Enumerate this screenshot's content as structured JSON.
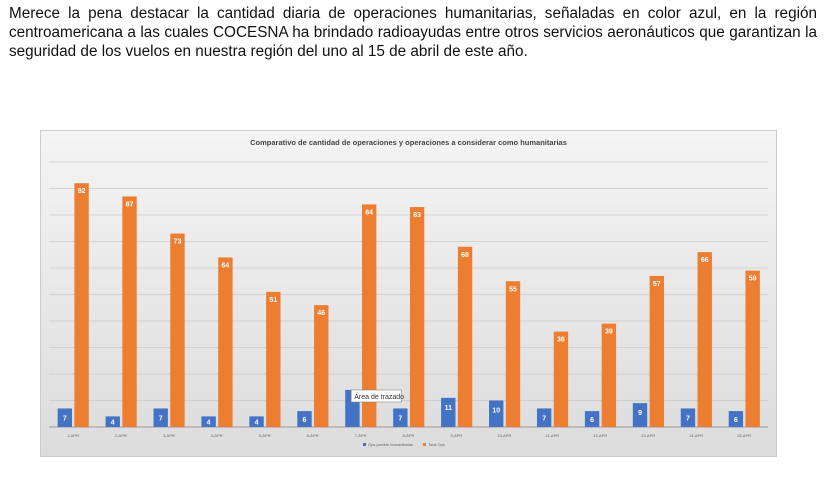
{
  "paragraph": "Merece la pena destacar la cantidad diaria de operaciones humanitarias, señaladas en color azul, en la región centroamericana a las cuales COCESNA ha brindado radioayudas entre otros servicios aeronáuticos que garantizan la seguridad de los vuelos en nuestra región del uno al 15 de abril de este año.",
  "tooltip": "Área de trazado",
  "chart_data": {
    "type": "bar",
    "title": "Comparativo de cantidad de operaciones y operaciones a considerar como humanitarias",
    "categories": [
      "1-APR",
      "2-APR",
      "3-APR",
      "4-APR",
      "5-APR",
      "6-APR",
      "7-APR",
      "8-APR",
      "9-APR",
      "10-APR",
      "11-APR",
      "12-APR",
      "13-APR",
      "14-APR",
      "15-APR"
    ],
    "series": [
      {
        "name": "Ops posible humanitarias",
        "color": "#4472c4",
        "values": [
          7,
          4,
          7,
          4,
          4,
          6,
          14,
          7,
          11,
          10,
          7,
          6,
          9,
          7,
          6
        ]
      },
      {
        "name": "Total Ops",
        "color": "#ed7d31",
        "values": [
          92,
          87,
          73,
          64,
          51,
          46,
          84,
          83,
          68,
          55,
          36,
          39,
          57,
          66,
          59
        ]
      }
    ],
    "ylim": [
      0,
      100
    ],
    "grid": true,
    "legend": "bottom"
  }
}
